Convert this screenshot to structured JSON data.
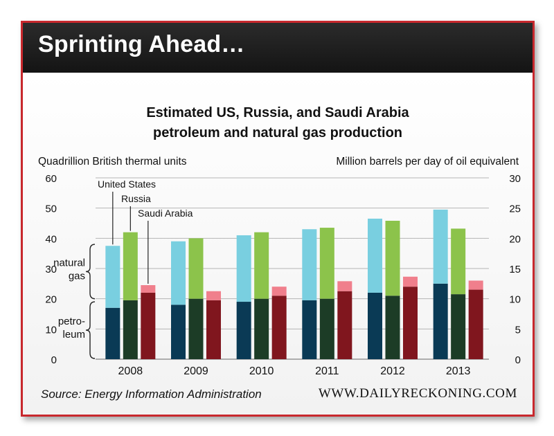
{
  "banner": {
    "title": "Sprinting Ahead…"
  },
  "footer": {
    "source": "Source: Energy Information Administration",
    "website": "WWW.DAILYRECKONING.COM"
  },
  "chart_data": {
    "type": "bar",
    "stacked": true,
    "title": "Estimated US, Russia, and Saudi Arabia petroleum and natural gas production",
    "title_lines": [
      "Estimated US, Russia, and Saudi Arabia",
      "petroleum and natural gas production"
    ],
    "ylabel_left": "Quadrillion British thermal units",
    "ylabel_right": "Million barrels per day of oil equivalent",
    "ylim_left": [
      0,
      60
    ],
    "ylim_right": [
      0,
      30
    ],
    "yticks_left": [
      0,
      10,
      20,
      30,
      40,
      50,
      60
    ],
    "yticks_right": [
      0,
      5,
      10,
      15,
      20,
      25,
      30
    ],
    "grid": true,
    "categories": [
      "2008",
      "2009",
      "2010",
      "2011",
      "2012",
      "2013"
    ],
    "series": [
      {
        "name": "United States",
        "petroleum": [
          17,
          18,
          19,
          19.5,
          22,
          25
        ],
        "natural_gas": [
          20.5,
          21,
          22,
          23.5,
          24.5,
          24.5
        ],
        "petroleum_color": "#0a3a55",
        "gas_color": "#79cfe0"
      },
      {
        "name": "Russia",
        "petroleum": [
          19.5,
          20,
          20,
          20,
          21,
          21.5
        ],
        "natural_gas": [
          22.5,
          20,
          22,
          23.5,
          24.8,
          21.7
        ],
        "petroleum_color": "#1c3c26",
        "gas_color": "#8cc34b"
      },
      {
        "name": "Saudi Arabia",
        "petroleum": [
          22,
          19.5,
          21,
          22.5,
          24,
          23
        ],
        "natural_gas": [
          2.5,
          3,
          3,
          3.3,
          3.3,
          3
        ],
        "petroleum_color": "#80161e",
        "gas_color": "#f07f8c"
      }
    ],
    "annotations": {
      "natural_gas": [
        "natural",
        "gas"
      ],
      "petroleum": [
        "petro-",
        "leum"
      ]
    }
  }
}
